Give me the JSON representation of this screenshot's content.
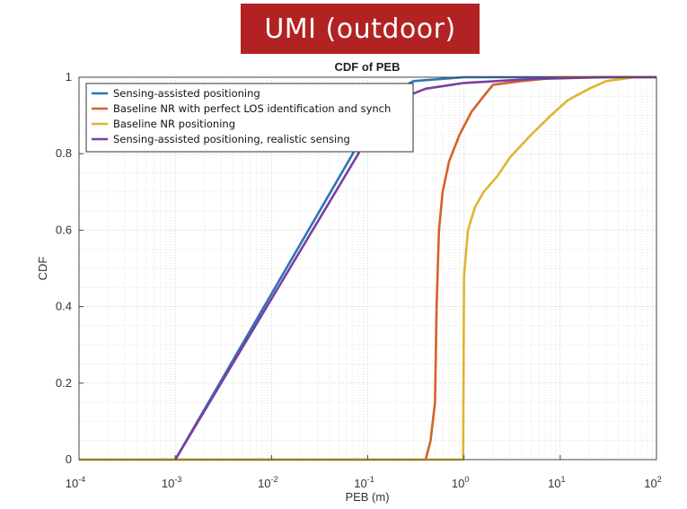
{
  "banner": {
    "text": "UMI (outdoor)",
    "color": "#b22222"
  },
  "chart_data": {
    "type": "line",
    "title": "CDF of PEB",
    "xlabel": "PEB (m)",
    "ylabel": "CDF",
    "xscale": "log",
    "xlim": [
      0.0001,
      100
    ],
    "ylim": [
      0,
      1
    ],
    "grid": true,
    "legend_position": "top-left",
    "x_ticks": [
      {
        "base": "10",
        "exp": "-4"
      },
      {
        "base": "10",
        "exp": "-3"
      },
      {
        "base": "10",
        "exp": "-2"
      },
      {
        "base": "10",
        "exp": "-1"
      },
      {
        "base": "10",
        "exp": "0"
      },
      {
        "base": "10",
        "exp": "1"
      },
      {
        "base": "10",
        "exp": "2"
      }
    ],
    "y_ticks": [
      "0",
      "0.2",
      "0.4",
      "0.6",
      "0.8",
      "1"
    ],
    "series": [
      {
        "name": "Sensing-assisted positioning",
        "color": "#2f73b8",
        "points": [
          [
            0.001,
            0
          ],
          [
            0.07,
            0.8
          ],
          [
            0.09,
            0.87
          ],
          [
            0.15,
            0.95
          ],
          [
            0.3,
            0.99
          ],
          [
            1,
            1
          ],
          [
            100,
            1
          ]
        ]
      },
      {
        "name": "Baseline NR with perfect LOS identification and synch",
        "color": "#d4622a",
        "points": [
          [
            0.0001,
            0
          ],
          [
            0.4,
            0
          ],
          [
            0.45,
            0.05
          ],
          [
            0.5,
            0.15
          ],
          [
            0.52,
            0.4
          ],
          [
            0.55,
            0.6
          ],
          [
            0.6,
            0.7
          ],
          [
            0.7,
            0.78
          ],
          [
            0.9,
            0.85
          ],
          [
            1.2,
            0.91
          ],
          [
            1.6,
            0.95
          ],
          [
            2,
            0.98
          ],
          [
            4,
            0.99
          ],
          [
            10,
            1
          ],
          [
            100,
            1
          ]
        ]
      },
      {
        "name": "Baseline NR positioning",
        "color": "#e0b52e",
        "points": [
          [
            0.0001,
            0
          ],
          [
            0.98,
            0
          ],
          [
            1.0,
            0.48
          ],
          [
            1.1,
            0.6
          ],
          [
            1.3,
            0.66
          ],
          [
            1.6,
            0.7
          ],
          [
            2.2,
            0.74
          ],
          [
            3,
            0.79
          ],
          [
            5,
            0.85
          ],
          [
            8,
            0.9
          ],
          [
            12,
            0.94
          ],
          [
            20,
            0.97
          ],
          [
            30,
            0.99
          ],
          [
            60,
            1
          ],
          [
            100,
            1
          ]
        ]
      },
      {
        "name": "Sensing-assisted positioning, realistic sensing",
        "color": "#7b3fa0",
        "points": [
          [
            0.001,
            0
          ],
          [
            0.08,
            0.8
          ],
          [
            0.1,
            0.87
          ],
          [
            0.2,
            0.94
          ],
          [
            0.4,
            0.97
          ],
          [
            1,
            0.985
          ],
          [
            5,
            0.995
          ],
          [
            30,
            1
          ],
          [
            100,
            1
          ]
        ]
      }
    ]
  }
}
